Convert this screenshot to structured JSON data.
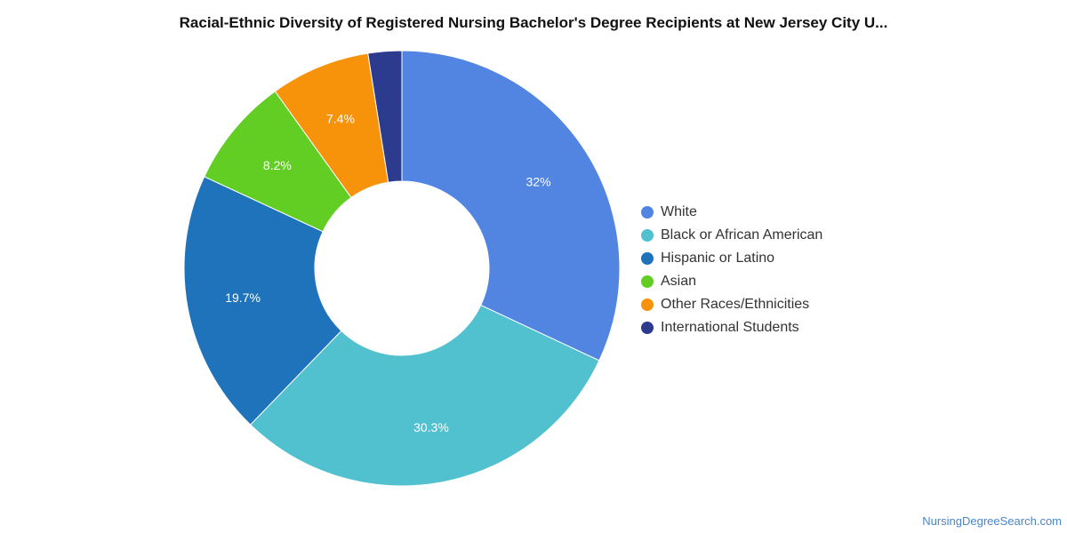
{
  "chart_data": {
    "type": "pie",
    "title": "Racial-Ethnic Diversity of Registered Nursing Bachelor's Degree Recipients at New Jersey City U...",
    "donut": true,
    "legend_position": "right",
    "slices": [
      {
        "name": "White",
        "value": 32.0,
        "label": "32%",
        "color": "#5285e2"
      },
      {
        "name": "Black or African American",
        "value": 30.3,
        "label": "30.3%",
        "color": "#51c1cf"
      },
      {
        "name": "Hispanic or Latino",
        "value": 19.7,
        "label": "19.7%",
        "color": "#1f73bb"
      },
      {
        "name": "Asian",
        "value": 8.2,
        "label": "8.2%",
        "color": "#62ce24"
      },
      {
        "name": "Other Races/Ethnicities",
        "value": 7.4,
        "label": "7.4%",
        "color": "#f7920b"
      },
      {
        "name": "International Students",
        "value": 2.5,
        "label": "",
        "color": "#2d3b8e"
      }
    ]
  },
  "source": "NursingDegreeSearch.com"
}
